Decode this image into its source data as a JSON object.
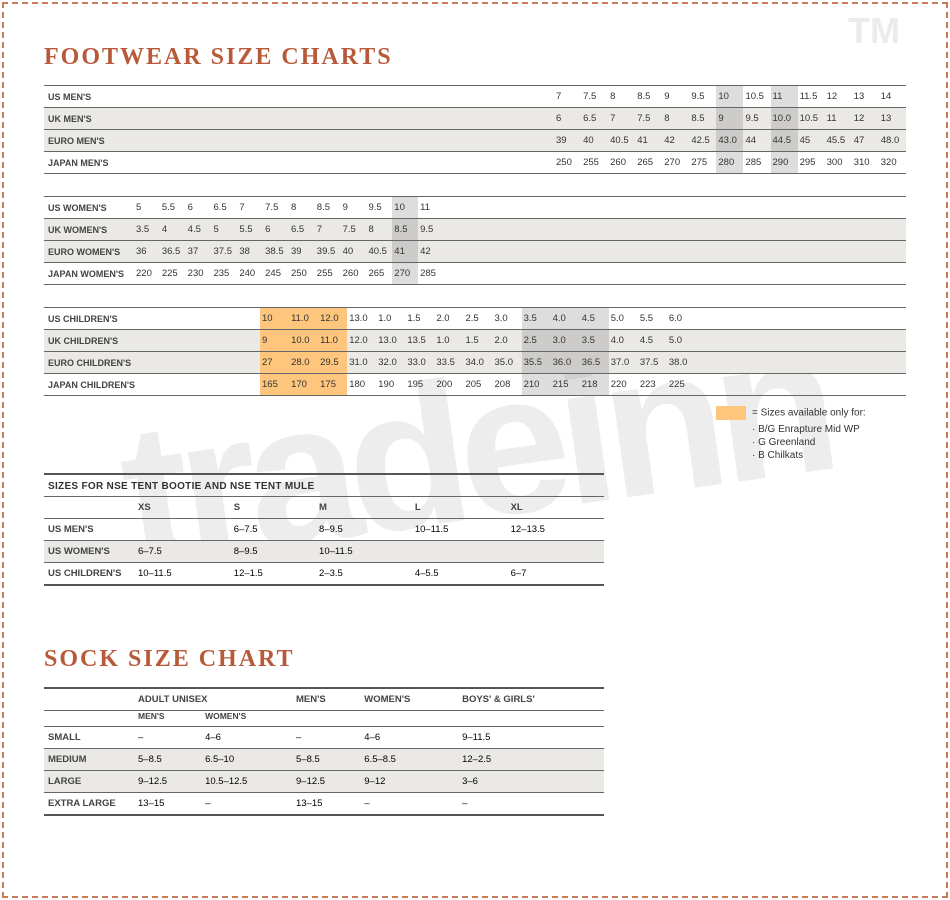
{
  "colors": {
    "border": "#c97a5a",
    "heading": "#b85a3a",
    "alt_row": "#ebe9e6",
    "shade": "#fec57d",
    "highlight": "rgba(120,120,120,0.25)",
    "rule": "#666666",
    "text": "#333333"
  },
  "watermark": "tradeinn",
  "tm": "TM",
  "titles": {
    "footwear": "FOOTWEAR SIZE CHARTS",
    "sock": "SOCK SIZE CHART",
    "nse": "SIZES FOR NSE TENT BOOTIE AND NSE TENT MULE"
  },
  "mens": {
    "lead_empty": 10,
    "us": {
      "label": "US MEN'S",
      "v": [
        "7",
        "7.5",
        "8",
        "8.5",
        "9",
        "9.5",
        "10",
        "10.5",
        "11",
        "11.5",
        "12",
        "13",
        "14"
      ]
    },
    "uk": {
      "label": "UK MEN'S",
      "v": [
        "6",
        "6.5",
        "7",
        "7.5",
        "8",
        "8.5",
        "9",
        "9.5",
        "10.0",
        "10.5",
        "11",
        "12",
        "13"
      ]
    },
    "euro": {
      "label": "EURO MEN'S",
      "v": [
        "39",
        "40",
        "40.5",
        "41",
        "42",
        "42.5",
        "43.0",
        "44",
        "44.5",
        "45",
        "45.5",
        "47",
        "48.0"
      ]
    },
    "japan": {
      "label": "JAPAN MEN'S",
      "v": [
        "250",
        "255",
        "260",
        "265",
        "270",
        "275",
        "280",
        "285",
        "290",
        "295",
        "300",
        "310",
        "320"
      ]
    },
    "highlight_cols": [
      6,
      8
    ]
  },
  "womens": {
    "trail_empty": 11,
    "us": {
      "label": "US WOMEN'S",
      "v": [
        "5",
        "5.5",
        "6",
        "6.5",
        "7",
        "7.5",
        "8",
        "8.5",
        "9",
        "9.5",
        "10",
        "11"
      ]
    },
    "uk": {
      "label": "UK WOMEN'S",
      "v": [
        "3.5",
        "4",
        "4.5",
        "5",
        "5.5",
        "6",
        "6.5",
        "7",
        "7.5",
        "8",
        "8.5",
        "9.5"
      ]
    },
    "euro": {
      "label": "EURO WOMEN'S",
      "v": [
        "36",
        "36.5",
        "37",
        "37.5",
        "38",
        "38.5",
        "39",
        "39.5",
        "40",
        "40.5",
        "41",
        "42"
      ]
    },
    "japan": {
      "label": "JAPAN WOMEN'S",
      "v": [
        "220",
        "225",
        "230",
        "235",
        "240",
        "245",
        "250",
        "255",
        "260",
        "265",
        "270",
        "285"
      ]
    },
    "highlight_cols": [
      10
    ]
  },
  "children": {
    "lead_empty": 3,
    "trail_empty": 5,
    "shade_first": 3,
    "us": {
      "label": "US CHILDREN'S",
      "v": [
        "10",
        "11.0",
        "12.0",
        "13.0",
        "1.0",
        "1.5",
        "2.0",
        "2.5",
        "3.0",
        "3.5",
        "4.0",
        "4.5",
        "5.0",
        "5.5",
        "6.0"
      ]
    },
    "uk": {
      "label": "UK CHILDREN'S",
      "v": [
        "9",
        "10.0",
        "11.0",
        "12.0",
        "13.0",
        "13.5",
        "1.0",
        "1.5",
        "2.0",
        "2.5",
        "3.0",
        "3.5",
        "4.0",
        "4.5",
        "5.0"
      ]
    },
    "euro": {
      "label": "EURO CHILDREN'S",
      "v": [
        "27",
        "28.0",
        "29.5",
        "31.0",
        "32.0",
        "33.0",
        "33.5",
        "34.0",
        "35.0",
        "35.5",
        "36.0",
        "36.5",
        "37.0",
        "37.5",
        "38.0"
      ]
    },
    "japan": {
      "label": "JAPAN CHILDREN'S",
      "v": [
        "165",
        "170",
        "175",
        "180",
        "190",
        "195",
        "200",
        "205",
        "208",
        "210",
        "215",
        "218",
        "220",
        "223",
        "225"
      ]
    },
    "highlight_cols": [
      9,
      10,
      11
    ]
  },
  "legend": {
    "label": "= Sizes available only for:",
    "items": [
      "B/G Enrapture Mid WP",
      "G Greenland",
      "B Chilkats"
    ]
  },
  "nse": {
    "headers": [
      "XS",
      "S",
      "M",
      "L",
      "XL"
    ],
    "rows": [
      {
        "label": "US MEN'S",
        "v": [
          "",
          "6–7.5",
          "8–9.5",
          "10–11.5",
          "12–13.5"
        ]
      },
      {
        "label": "US WOMEN'S",
        "v": [
          "6–7.5",
          "8–9.5",
          "10–11.5",
          "",
          ""
        ]
      },
      {
        "label": "US CHILDREN'S",
        "v": [
          "10–11.5",
          "12–1.5",
          "2–3.5",
          "4–5.5",
          "6–7"
        ]
      }
    ]
  },
  "sock": {
    "groups": [
      "ADULT UNISEX",
      "MEN'S",
      "WOMEN'S",
      "BOYS' & GIRLS'"
    ],
    "sub": [
      "MEN'S",
      "WOMEN'S"
    ],
    "rows": [
      {
        "label": "SMALL",
        "v": [
          "–",
          "4–6",
          "–",
          "4–6",
          "9–11.5"
        ]
      },
      {
        "label": "MEDIUM",
        "v": [
          "5–8.5",
          "6.5–10",
          "5–8.5",
          "6.5–8.5",
          "12–2.5"
        ]
      },
      {
        "label": "LARGE",
        "v": [
          "9–12.5",
          "10.5–12.5",
          "9–12.5",
          "9–12",
          "3–6"
        ]
      },
      {
        "label": "EXTRA LARGE",
        "v": [
          "13–15",
          "–",
          "13–15",
          "–",
          "–"
        ]
      }
    ]
  }
}
